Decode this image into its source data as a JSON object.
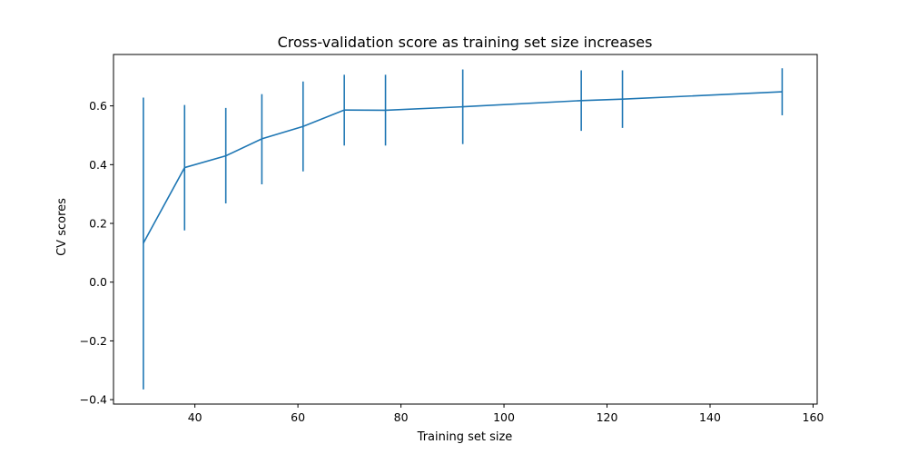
{
  "chart_data": {
    "type": "line",
    "title": "Cross-validation score as training set size increases",
    "xlabel": "Training set size",
    "ylabel": "CV scores",
    "xlim": [
      24.2,
      160.8
    ],
    "ylim": [
      -0.415,
      0.775
    ],
    "xticks": [
      40,
      60,
      80,
      100,
      120,
      140,
      160
    ],
    "yticks": [
      -0.4,
      -0.2,
      0.0,
      0.2,
      0.4,
      0.6
    ],
    "ytick_labels": [
      "−0.4",
      "−0.2",
      "0.0",
      "0.2",
      "0.4",
      "0.6"
    ],
    "grid": false,
    "series_color": "#1f77b4",
    "series": [
      {
        "x": [
          30,
          38,
          46,
          53,
          61,
          69,
          77,
          92,
          115,
          123,
          154
        ],
        "y": [
          0.133,
          0.39,
          0.43,
          0.488,
          0.53,
          0.586,
          0.585,
          0.597,
          0.618,
          0.623,
          0.648
        ],
        "yerr_low": [
          -0.365,
          0.176,
          0.268,
          0.333,
          0.377,
          0.465,
          0.465,
          0.47,
          0.515,
          0.525,
          0.568
        ],
        "yerr_high": [
          0.628,
          0.603,
          0.593,
          0.64,
          0.683,
          0.706,
          0.706,
          0.724,
          0.721,
          0.721,
          0.728
        ]
      }
    ]
  }
}
